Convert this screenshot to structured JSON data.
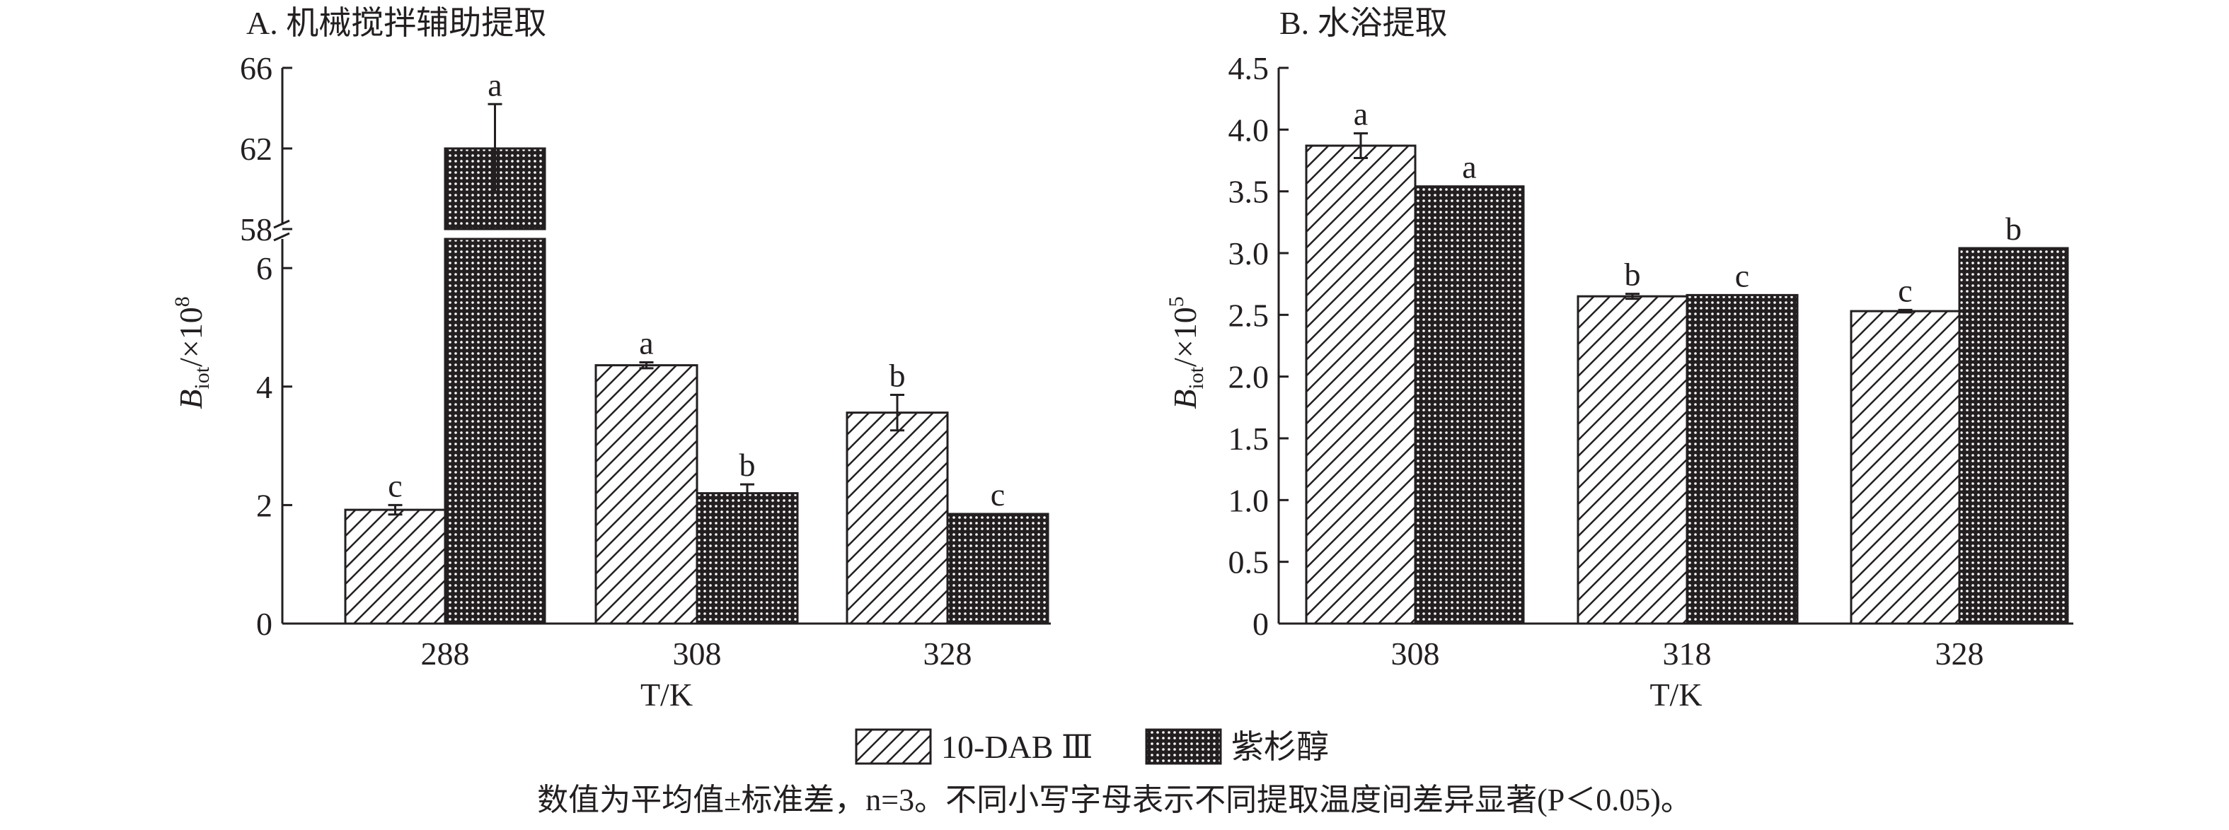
{
  "legend": [
    "10-DAB Ⅲ",
    "紫杉醇"
  ],
  "caption": "数值为平均值±标准差，n=3。不同小写字母表示不同提取温度间差异显著(P＜0.05)。",
  "colors": {
    "ink": "#231f20",
    "background": "#ffffff"
  },
  "chart_data": [
    {
      "type": "bar",
      "title": "A. 机械搅拌辅助提取",
      "xlabel": "T/K",
      "ylabel": "Biot/×10^8",
      "ylabel_parts": {
        "main": "B",
        "sub": "iot",
        "rest": "/×10",
        "sup": "8"
      },
      "categories": [
        "288",
        "308",
        "328"
      ],
      "axis_break": [
        6.2,
        58
      ],
      "yticks": [
        "0",
        "2",
        "4",
        "6",
        "58",
        "62",
        "66"
      ],
      "ylim": [
        0,
        66
      ],
      "series": [
        {
          "name": "10-DAB Ⅲ",
          "values": [
            1.92,
            4.36,
            3.56
          ],
          "errors": [
            0.08,
            0.05,
            0.3
          ],
          "letters": [
            "c",
            "a",
            "b"
          ]
        },
        {
          "name": "紫杉醇",
          "values": [
            62.0,
            2.2,
            1.85
          ],
          "errors": [
            2.2,
            0.15,
            0.0
          ],
          "letters": [
            "a",
            "b",
            "c"
          ]
        }
      ]
    },
    {
      "type": "bar",
      "title": "B. 水浴提取",
      "xlabel": "T/K",
      "ylabel": "Biot/×10^5",
      "ylabel_parts": {
        "main": "B",
        "sub": "iot",
        "rest": "/×10",
        "sup": "5"
      },
      "categories": [
        "308",
        "318",
        "328"
      ],
      "yticks": [
        "0",
        "0.5",
        "1.0",
        "1.5",
        "2.0",
        "2.5",
        "3.0",
        "3.5",
        "4.0",
        "4.5"
      ],
      "ylim": [
        0,
        4.5
      ],
      "series": [
        {
          "name": "10-DAB Ⅲ",
          "values": [
            3.87,
            2.65,
            2.53
          ],
          "errors": [
            0.1,
            0.02,
            0.01
          ],
          "letters": [
            "a",
            "b",
            "c"
          ]
        },
        {
          "name": "紫杉醇",
          "values": [
            3.54,
            2.66,
            3.04
          ],
          "errors": [
            0.0,
            0.0,
            0.0
          ],
          "letters": [
            "a",
            "c",
            "b"
          ]
        }
      ]
    }
  ]
}
